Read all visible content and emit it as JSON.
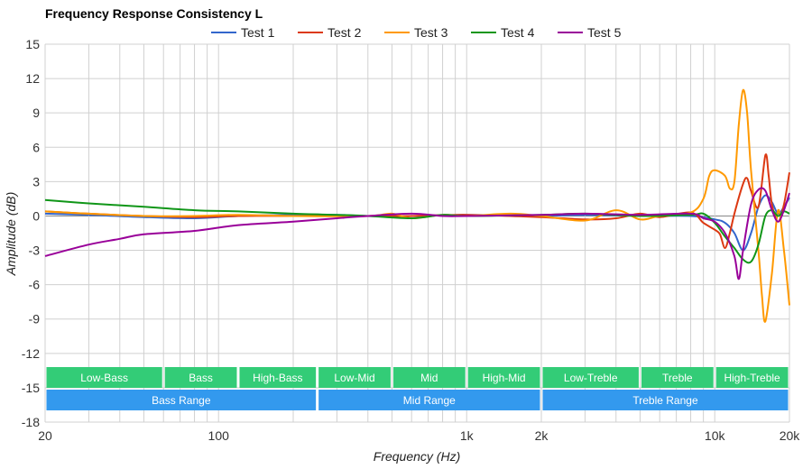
{
  "chart_data": {
    "type": "line",
    "title": "Frequency Response Consistency L",
    "xlabel": "Frequency (Hz)",
    "ylabel": "Amplitude (dB)",
    "xscale": "log",
    "xlim": [
      20,
      20000
    ],
    "ylim": [
      -18,
      15
    ],
    "grid": true,
    "legend_position": "top",
    "y_ticks": [
      15,
      12,
      9,
      6,
      3,
      0,
      -3,
      -6,
      -9,
      -12,
      -15,
      -18
    ],
    "x_ticks": [
      {
        "value": 20,
        "label": "20"
      },
      {
        "value": 100,
        "label": "100"
      },
      {
        "value": 1000,
        "label": "1k"
      },
      {
        "value": 2000,
        "label": "2k"
      },
      {
        "value": 10000,
        "label": "10k"
      },
      {
        "value": 20000,
        "label": "20k"
      }
    ],
    "series": [
      {
        "name": "Test 1",
        "color": "#3366cc",
        "points": [
          [
            20,
            0.2
          ],
          [
            30,
            0.1
          ],
          [
            50,
            -0.1
          ],
          [
            80,
            -0.2
          ],
          [
            120,
            0
          ],
          [
            200,
            0.1
          ],
          [
            300,
            0.1
          ],
          [
            400,
            0
          ],
          [
            600,
            0
          ],
          [
            1000,
            0.1
          ],
          [
            2000,
            0
          ],
          [
            3000,
            0.1
          ],
          [
            5000,
            0
          ],
          [
            8000,
            0
          ],
          [
            10000,
            -0.3
          ],
          [
            11000,
            -0.6
          ],
          [
            12000,
            -1.5
          ],
          [
            13000,
            -3.0
          ],
          [
            14000,
            -1.5
          ],
          [
            15000,
            0.8
          ],
          [
            16000,
            1.8
          ],
          [
            17000,
            1.2
          ],
          [
            18000,
            0.2
          ],
          [
            19000,
            0.8
          ],
          [
            20000,
            1.6
          ]
        ]
      },
      {
        "name": "Test 2",
        "color": "#dc3912",
        "points": [
          [
            20,
            0.4
          ],
          [
            30,
            0.2
          ],
          [
            50,
            0
          ],
          [
            80,
            -0.1
          ],
          [
            120,
            0
          ],
          [
            200,
            0
          ],
          [
            400,
            0
          ],
          [
            600,
            0
          ],
          [
            1000,
            0.1
          ],
          [
            2000,
            -0.1
          ],
          [
            3000,
            -0.3
          ],
          [
            4000,
            -0.2
          ],
          [
            5000,
            0.2
          ],
          [
            6000,
            -0.1
          ],
          [
            8000,
            0.3
          ],
          [
            9000,
            -0.6
          ],
          [
            10000,
            -1.2
          ],
          [
            10500,
            -1.6
          ],
          [
            11000,
            -2.8
          ],
          [
            11500,
            -1.5
          ],
          [
            12000,
            0.2
          ],
          [
            13000,
            2.8
          ],
          [
            13500,
            3.3
          ],
          [
            14000,
            2.2
          ],
          [
            15000,
            0.8
          ],
          [
            16000,
            5.3
          ],
          [
            16500,
            3.5
          ],
          [
            17000,
            1.0
          ],
          [
            18000,
            -0.5
          ],
          [
            19000,
            1.0
          ],
          [
            20000,
            3.8
          ]
        ]
      },
      {
        "name": "Test 3",
        "color": "#ff9900",
        "points": [
          [
            20,
            0.4
          ],
          [
            30,
            0.2
          ],
          [
            50,
            0
          ],
          [
            80,
            0
          ],
          [
            120,
            0.1
          ],
          [
            200,
            0
          ],
          [
            400,
            0
          ],
          [
            500,
            0.2
          ],
          [
            600,
            -0.2
          ],
          [
            800,
            0.1
          ],
          [
            1000,
            0
          ],
          [
            1500,
            0.2
          ],
          [
            2000,
            0
          ],
          [
            3000,
            -0.4
          ],
          [
            4000,
            0.5
          ],
          [
            5000,
            -0.3
          ],
          [
            6000,
            0
          ],
          [
            8000,
            0.3
          ],
          [
            9000,
            1.5
          ],
          [
            9500,
            3.5
          ],
          [
            10000,
            4.0
          ],
          [
            11000,
            3.5
          ],
          [
            11500,
            2.4
          ],
          [
            12000,
            3.0
          ],
          [
            12500,
            8.0
          ],
          [
            13000,
            11.0
          ],
          [
            13500,
            9.0
          ],
          [
            14000,
            4.0
          ],
          [
            15000,
            -3.0
          ],
          [
            15500,
            -7.0
          ],
          [
            16000,
            -9.2
          ],
          [
            17000,
            -5.0
          ],
          [
            18000,
            0.5
          ],
          [
            19000,
            -3.0
          ],
          [
            20000,
            -7.8
          ]
        ]
      },
      {
        "name": "Test 4",
        "color": "#109618",
        "points": [
          [
            20,
            1.4
          ],
          [
            30,
            1.1
          ],
          [
            50,
            0.8
          ],
          [
            80,
            0.5
          ],
          [
            120,
            0.4
          ],
          [
            200,
            0.2
          ],
          [
            300,
            0.1
          ],
          [
            400,
            0
          ],
          [
            600,
            -0.2
          ],
          [
            800,
            0.1
          ],
          [
            1000,
            0
          ],
          [
            2000,
            0.1
          ],
          [
            3000,
            0.2
          ],
          [
            5000,
            0
          ],
          [
            8000,
            0.1
          ],
          [
            9000,
            0.2
          ],
          [
            10000,
            -0.6
          ],
          [
            11000,
            -1.8
          ],
          [
            12000,
            -2.8
          ],
          [
            13000,
            -3.8
          ],
          [
            14000,
            -4.0
          ],
          [
            15000,
            -2.5
          ],
          [
            16000,
            0
          ],
          [
            17000,
            0.5
          ],
          [
            18000,
            0
          ],
          [
            19000,
            0.4
          ],
          [
            20000,
            0.2
          ]
        ]
      },
      {
        "name": "Test 5",
        "color": "#990099",
        "points": [
          [
            20,
            -3.5
          ],
          [
            30,
            -2.5
          ],
          [
            40,
            -2.0
          ],
          [
            50,
            -1.6
          ],
          [
            80,
            -1.3
          ],
          [
            120,
            -0.8
          ],
          [
            200,
            -0.5
          ],
          [
            300,
            -0.2
          ],
          [
            400,
            0
          ],
          [
            600,
            0.2
          ],
          [
            800,
            0
          ],
          [
            1000,
            0
          ],
          [
            2000,
            0.1
          ],
          [
            3000,
            0.2
          ],
          [
            5000,
            0.1
          ],
          [
            8000,
            0.2
          ],
          [
            9000,
            -0.2
          ],
          [
            10000,
            -0.5
          ],
          [
            11000,
            -1.5
          ],
          [
            12000,
            -3.5
          ],
          [
            12500,
            -5.5
          ],
          [
            13000,
            -3.0
          ],
          [
            14000,
            1.0
          ],
          [
            15000,
            2.3
          ],
          [
            16000,
            2.2
          ],
          [
            17000,
            0.5
          ],
          [
            18000,
            -0.5
          ],
          [
            19000,
            0.5
          ],
          [
            20000,
            2.0
          ]
        ]
      }
    ],
    "bands": [
      {
        "label": "Low-Bass",
        "from": 20,
        "to": 60
      },
      {
        "label": "Bass",
        "from": 60,
        "to": 120
      },
      {
        "label": "High-Bass",
        "from": 120,
        "to": 250
      },
      {
        "label": "Low-Mid",
        "from": 250,
        "to": 500
      },
      {
        "label": "Mid",
        "from": 500,
        "to": 1000
      },
      {
        "label": "High-Mid",
        "from": 1000,
        "to": 2000
      },
      {
        "label": "Low-Treble",
        "from": 2000,
        "to": 5000
      },
      {
        "label": "Treble",
        "from": 5000,
        "to": 10000
      },
      {
        "label": "High-Treble",
        "from": 10000,
        "to": 20000
      }
    ],
    "ranges": [
      {
        "label": "Bass Range",
        "from": 20,
        "to": 250
      },
      {
        "label": "Mid Range",
        "from": 250,
        "to": 2000
      },
      {
        "label": "Treble Range",
        "from": 2000,
        "to": 20000
      }
    ],
    "band_color": "#33cc77",
    "range_color": "#3399ee"
  }
}
